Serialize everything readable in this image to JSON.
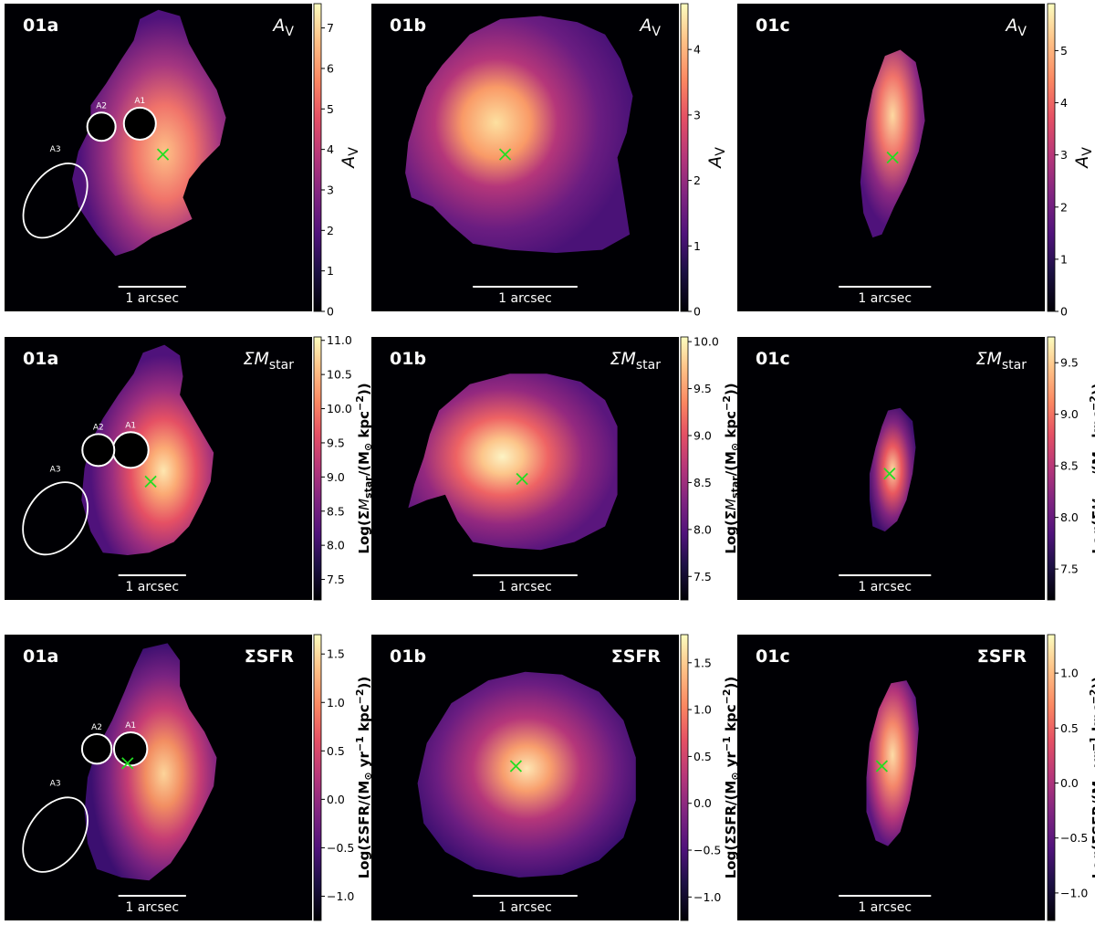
{
  "chart_data": {
    "type": "heatmap",
    "colormap": "magma",
    "scalebar_label": "1 arcsec",
    "aperture_labels": [
      "A1",
      "A2",
      "A3"
    ],
    "rows": [
      {
        "quantity": "A_V",
        "title_main": "A",
        "title_sub": "V",
        "colorbar_label": "A_V",
        "panels": [
          {
            "galaxy": "01a",
            "vmin": 0,
            "vmax": 7.6,
            "ticks": [
              0,
              1,
              2,
              3,
              4,
              5,
              6,
              7
            ],
            "apertures": true
          },
          {
            "galaxy": "01b",
            "vmin": 0,
            "vmax": 4.7,
            "ticks": [
              0,
              1,
              2,
              3,
              4
            ],
            "apertures": false
          },
          {
            "galaxy": "01c",
            "vmin": 0,
            "vmax": 5.9,
            "ticks": [
              0,
              1,
              2,
              3,
              4,
              5
            ],
            "apertures": false
          }
        ]
      },
      {
        "quantity": "Sigma_Mstar",
        "title_main": "ΣM",
        "title_sub": "star",
        "colorbar_label": "Log(ΣM_star/(M_sun kpc^-2))",
        "panels": [
          {
            "galaxy": "01a",
            "vmin": 7.2,
            "vmax": 11.05,
            "ticks": [
              7.5,
              8.0,
              8.5,
              9.0,
              9.5,
              10.0,
              10.5,
              11.0
            ],
            "apertures": true
          },
          {
            "galaxy": "01b",
            "vmin": 7.25,
            "vmax": 10.05,
            "ticks": [
              7.5,
              8.0,
              8.5,
              9.0,
              9.5,
              10.0
            ],
            "apertures": false
          },
          {
            "galaxy": "01c",
            "vmin": 7.2,
            "vmax": 9.75,
            "ticks": [
              7.5,
              8.0,
              8.5,
              9.0,
              9.5
            ],
            "apertures": false
          }
        ]
      },
      {
        "quantity": "Sigma_SFR",
        "title_main": "ΣSFR",
        "title_sub": "",
        "colorbar_label": "Log(ΣSFR/(M_sun yr^-1 kpc^-2))",
        "panels": [
          {
            "galaxy": "01a",
            "vmin": -1.25,
            "vmax": 1.7,
            "ticks": [
              -1.0,
              -0.5,
              0.0,
              0.5,
              1.0,
              1.5
            ],
            "apertures": true
          },
          {
            "galaxy": "01b",
            "vmin": -1.25,
            "vmax": 1.8,
            "ticks": [
              -1.0,
              -0.5,
              0.0,
              0.5,
              1.0,
              1.5
            ],
            "apertures": false
          },
          {
            "galaxy": "01c",
            "vmin": -1.25,
            "vmax": 1.35,
            "ticks": [
              -1.0,
              -0.5,
              0.0,
              0.5,
              1.0
            ],
            "apertures": false
          }
        ]
      }
    ]
  }
}
